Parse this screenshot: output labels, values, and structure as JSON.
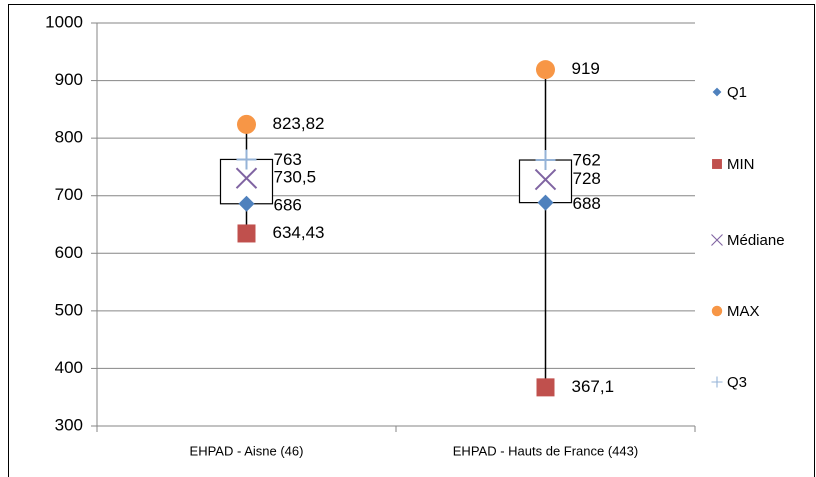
{
  "chart_data": {
    "type": "stock",
    "categories": [
      "EHPAD - Aisne (46)",
      "EHPAD - Hauts de France (443)"
    ],
    "series": [
      {
        "name": "Q1",
        "color": "#4f81bd",
        "marker": "diamond",
        "values": [
          686,
          688
        ]
      },
      {
        "name": "MIN",
        "color": "#c0504d",
        "marker": "square",
        "values": [
          634.43,
          367.1
        ],
        "value_labels": [
          "634,43",
          "367,1"
        ]
      },
      {
        "name": "Médiane",
        "color": "#8064a2",
        "marker": "x",
        "values": [
          730.5,
          728
        ],
        "value_labels": [
          "730,5",
          "728"
        ]
      },
      {
        "name": "MAX",
        "color": "#f79646",
        "marker": "circle",
        "values": [
          823.82,
          919
        ],
        "value_labels": [
          "823,82",
          "919"
        ]
      },
      {
        "name": "Q3",
        "color": "#95b3d7",
        "marker": "plus",
        "values": [
          763,
          762
        ]
      }
    ],
    "ylim": [
      300,
      1000
    ],
    "yticks": [
      300,
      400,
      500,
      600,
      700,
      800,
      900,
      1000
    ],
    "grid": true,
    "legend": "right"
  }
}
